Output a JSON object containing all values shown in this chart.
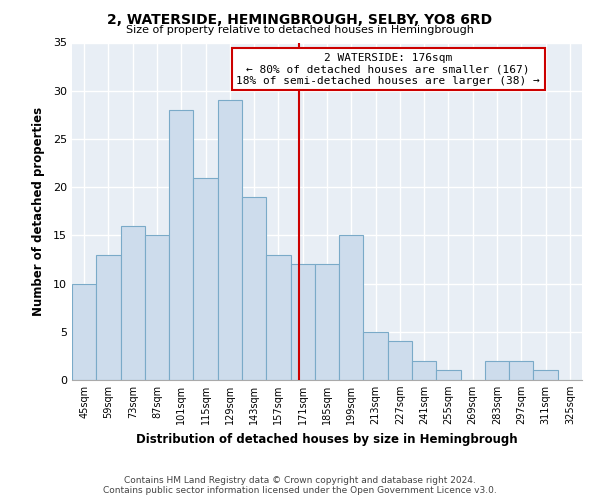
{
  "title": "2, WATERSIDE, HEMINGBROUGH, SELBY, YO8 6RD",
  "subtitle": "Size of property relative to detached houses in Hemingbrough",
  "xlabel": "Distribution of detached houses by size in Hemingbrough",
  "ylabel": "Number of detached properties",
  "footer_line1": "Contains HM Land Registry data © Crown copyright and database right 2024.",
  "footer_line2": "Contains public sector information licensed under the Open Government Licence v3.0.",
  "bin_labels": [
    "45sqm",
    "59sqm",
    "73sqm",
    "87sqm",
    "101sqm",
    "115sqm",
    "129sqm",
    "143sqm",
    "157sqm",
    "171sqm",
    "185sqm",
    "199sqm",
    "213sqm",
    "227sqm",
    "241sqm",
    "255sqm",
    "269sqm",
    "283sqm",
    "297sqm",
    "311sqm",
    "325sqm"
  ],
  "bar_values": [
    10,
    13,
    16,
    15,
    28,
    21,
    29,
    19,
    13,
    12,
    12,
    15,
    5,
    4,
    2,
    1,
    0,
    2,
    2,
    1,
    0
  ],
  "bar_color": "#cddcec",
  "bar_edge_color": "#7aaac8",
  "property_line_color": "#cc0000",
  "annotation_text": "2 WATERSIDE: 176sqm\n← 80% of detached houses are smaller (167)\n18% of semi-detached houses are larger (38) →",
  "annotation_box_color": "white",
  "annotation_box_edge_color": "#cc0000",
  "ylim": [
    0,
    35
  ],
  "yticks": [
    0,
    5,
    10,
    15,
    20,
    25,
    30,
    35
  ],
  "bin_edges": [
    45,
    59,
    73,
    87,
    101,
    115,
    129,
    143,
    157,
    171,
    185,
    199,
    213,
    227,
    241,
    255,
    269,
    283,
    297,
    311,
    325,
    339
  ],
  "bg_color": "#e8eef5",
  "grid_color": "#ffffff",
  "title_fontsize": 10,
  "subtitle_fontsize": 8
}
